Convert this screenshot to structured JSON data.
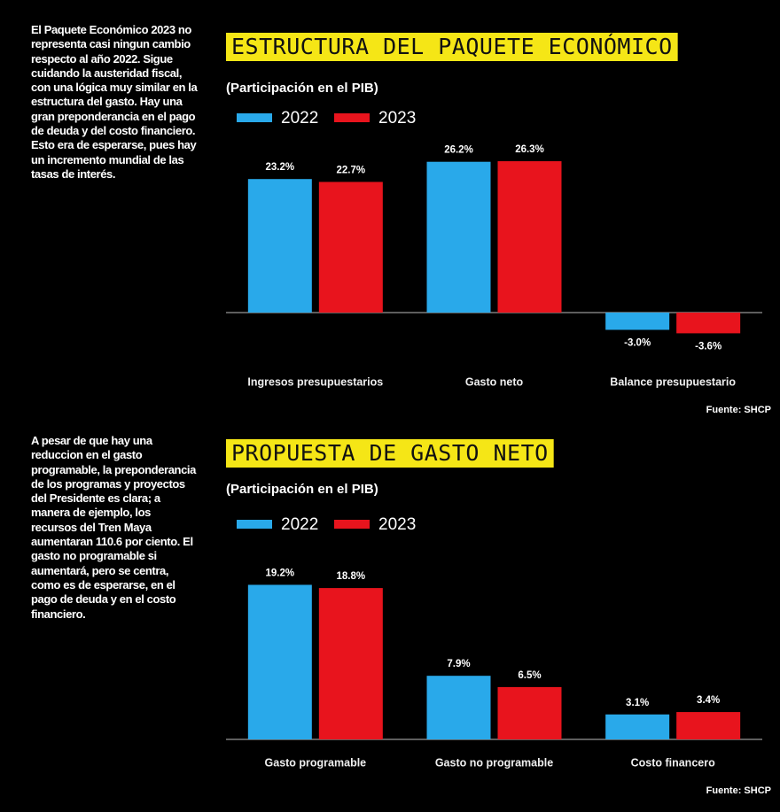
{
  "sidebar": [
    "El Paquete Económico 2023 no representa casi ningun cambio respecto al año 2022. Sigue cuidando la austeridad fiscal, con una lógica muy similar en la estructura del gasto. Hay una gran preponderancia en el pago de deuda y del costo financiero. Esto era de esperarse, pues hay un incremento mundial de las tasas de interés.",
    "A pesar de que hay una reduccion en el gasto programable, la preponderancia de los programas y proyectos del Presidente es clara; a manera de ejemplo, los recursos del Tren Maya aumentaran 110.6 por ciento. El gasto no programable si aumentará, pero se centra, como es de esperarse, en el pago de deuda y en el costo financiero."
  ],
  "chart_data": [
    {
      "type": "bar",
      "title": "ESTRUCTURA DEL PAQUETE ECONÓMICO",
      "subtitle": "(Participación en el PIB)",
      "categories": [
        "Ingresos presupuestarios",
        "Gasto neto",
        "Balance presupuestario"
      ],
      "series": [
        {
          "name": "2022",
          "color": "#29a9ea",
          "values": [
            23.2,
            26.2,
            -3.0
          ],
          "value_labels": [
            "23.2%",
            "26.2%",
            "-3.0%"
          ]
        },
        {
          "name": "2023",
          "color": "#e8141d",
          "values": [
            22.7,
            26.3,
            -3.6
          ],
          "value_labels": [
            "22.7%",
            "26.3%",
            "-3.6%"
          ]
        }
      ],
      "ylim": [
        -6,
        30
      ],
      "source": "Fuente: SHCP"
    },
    {
      "type": "bar",
      "title": "PROPUESTA DE GASTO NETO",
      "subtitle": "(Participación en el PIB)",
      "categories": [
        "Gasto programable",
        "Gasto no programable",
        "Costo financero"
      ],
      "series": [
        {
          "name": "2022",
          "color": "#29a9ea",
          "values": [
            19.2,
            7.9,
            3.1
          ],
          "value_labels": [
            "19.2%",
            "7.9%",
            "3.1%"
          ]
        },
        {
          "name": "2023",
          "color": "#e8141d",
          "values": [
            18.8,
            6.5,
            3.4
          ],
          "value_labels": [
            "18.8%",
            "6.5%",
            "3.4%"
          ]
        }
      ],
      "ylim": [
        0,
        22
      ],
      "source": "Fuente: SHCP"
    }
  ]
}
